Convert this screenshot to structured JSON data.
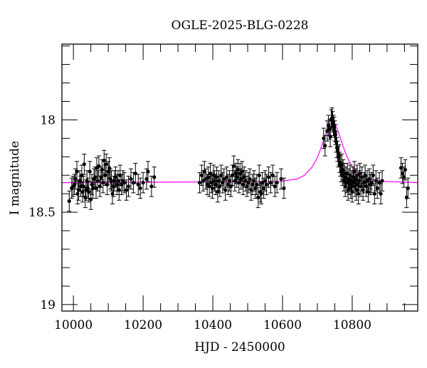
{
  "chart_data": {
    "type": "scatter",
    "title": "OGLE-2025-BLG-0228",
    "xlabel": "HJD - 2450000",
    "ylabel": "I magnitude",
    "xlim": [
      9967,
      10988
    ],
    "ylim": [
      19.035,
      17.59
    ],
    "y_inverted": true,
    "grid": false,
    "x_ticks": [
      10000,
      10200,
      10400,
      10600,
      10800
    ],
    "x_tick_labels": [
      "10000",
      "10200",
      "10400",
      "10600",
      "10800"
    ],
    "x_minor_step": 50,
    "y_ticks": [
      18,
      18.5,
      19
    ],
    "y_tick_labels": [
      "18",
      "18.5",
      "19"
    ],
    "y_minor_step": 0.1,
    "colors": {
      "points": "#000000",
      "model": "#ff00ff"
    },
    "series": [
      {
        "kind": "points-with-errorbars",
        "yerr": 0.055,
        "points": [
          [
            9988,
            18.44
          ],
          [
            9995,
            18.37
          ],
          [
            9999,
            18.36
          ],
          [
            10003,
            18.35
          ],
          [
            10006,
            18.32
          ],
          [
            10010,
            18.28
          ],
          [
            10012,
            18.4
          ],
          [
            10015,
            18.38
          ],
          [
            10018,
            18.33
          ],
          [
            10021,
            18.36
          ],
          [
            10024,
            18.3
          ],
          [
            10026,
            18.39
          ],
          [
            10029,
            18.36
          ],
          [
            10031,
            18.24
          ],
          [
            10034,
            18.42
          ],
          [
            10036,
            18.38
          ],
          [
            10039,
            18.33
          ],
          [
            10041,
            18.37
          ],
          [
            10044,
            18.39
          ],
          [
            10047,
            18.28
          ],
          [
            10050,
            18.43
          ],
          [
            10053,
            18.35
          ],
          [
            10056,
            18.37
          ],
          [
            10059,
            18.32
          ],
          [
            10062,
            18.31
          ],
          [
            10065,
            18.37
          ],
          [
            10067,
            18.26
          ],
          [
            10070,
            18.33
          ],
          [
            10073,
            18.25
          ],
          [
            10076,
            18.36
          ],
          [
            10079,
            18.31
          ],
          [
            10082,
            18.27
          ],
          [
            10085,
            18.34
          ],
          [
            10088,
            18.22
          ],
          [
            10091,
            18.3
          ],
          [
            10094,
            18.24
          ],
          [
            10097,
            18.35
          ],
          [
            10100,
            18.28
          ],
          [
            10103,
            18.26
          ],
          [
            10106,
            18.32
          ],
          [
            10109,
            18.33
          ],
          [
            10112,
            18.4
          ],
          [
            10115,
            18.36
          ],
          [
            10118,
            18.33
          ],
          [
            10121,
            18.31
          ],
          [
            10125,
            18.35
          ],
          [
            10128,
            18.33
          ],
          [
            10131,
            18.38
          ],
          [
            10134,
            18.3
          ],
          [
            10138,
            18.35
          ],
          [
            10142,
            18.33
          ],
          [
            10146,
            18.34
          ],
          [
            10152,
            18.38
          ],
          [
            10158,
            18.36
          ],
          [
            10165,
            18.32
          ],
          [
            10172,
            18.34
          ],
          [
            10178,
            18.29
          ],
          [
            10186,
            18.35
          ],
          [
            10192,
            18.37
          ],
          [
            10200,
            18.34
          ],
          [
            10210,
            18.32
          ],
          [
            10214,
            18.28
          ],
          [
            10224,
            18.36
          ],
          [
            10232,
            18.31
          ],
          [
            10362,
            18.34
          ],
          [
            10368,
            18.3
          ],
          [
            10372,
            18.33
          ],
          [
            10376,
            18.28
          ],
          [
            10380,
            18.32
          ],
          [
            10384,
            18.35
          ],
          [
            10387,
            18.31
          ],
          [
            10390,
            18.36
          ],
          [
            10393,
            18.29
          ],
          [
            10396,
            18.34
          ],
          [
            10399,
            18.37
          ],
          [
            10402,
            18.3
          ],
          [
            10405,
            18.33
          ],
          [
            10408,
            18.35
          ],
          [
            10411,
            18.31
          ],
          [
            10414,
            18.39
          ],
          [
            10417,
            18.33
          ],
          [
            10420,
            18.36
          ],
          [
            10424,
            18.3
          ],
          [
            10428,
            18.34
          ],
          [
            10432,
            18.32
          ],
          [
            10436,
            18.38
          ],
          [
            10440,
            18.31
          ],
          [
            10444,
            18.35
          ],
          [
            10448,
            18.33
          ],
          [
            10452,
            18.36
          ],
          [
            10456,
            18.3
          ],
          [
            10460,
            18.25
          ],
          [
            10463,
            18.33
          ],
          [
            10466,
            18.29
          ],
          [
            10469,
            18.31
          ],
          [
            10472,
            18.27
          ],
          [
            10475,
            18.34
          ],
          [
            10478,
            18.29
          ],
          [
            10481,
            18.32
          ],
          [
            10484,
            18.28
          ],
          [
            10487,
            18.35
          ],
          [
            10490,
            18.31
          ],
          [
            10494,
            18.33
          ],
          [
            10498,
            18.36
          ],
          [
            10502,
            18.34
          ],
          [
            10506,
            18.32
          ],
          [
            10510,
            18.38
          ],
          [
            10514,
            18.35
          ],
          [
            10518,
            18.33
          ],
          [
            10522,
            18.37
          ],
          [
            10526,
            18.35
          ],
          [
            10530,
            18.42
          ],
          [
            10533,
            18.3
          ],
          [
            10536,
            18.39
          ],
          [
            10539,
            18.4
          ],
          [
            10542,
            18.34
          ],
          [
            10546,
            18.37
          ],
          [
            10550,
            18.33
          ],
          [
            10554,
            18.35
          ],
          [
            10560,
            18.31
          ],
          [
            10566,
            18.34
          ],
          [
            10572,
            18.3
          ],
          [
            10578,
            18.36
          ],
          [
            10584,
            18.34
          ],
          [
            10596,
            18.32
          ],
          [
            10604,
            18.37
          ],
          [
            10718,
            18.1
          ],
          [
            10722,
            18.14
          ],
          [
            10728,
            18.06
          ],
          [
            10732,
            18.03
          ],
          [
            10735,
            18.05
          ],
          [
            10737,
            18.09
          ],
          [
            10740,
            18.0
          ],
          [
            10742,
            17.99
          ],
          [
            10744,
            18.01
          ],
          [
            10746,
            18.03
          ],
          [
            10748,
            18.04
          ],
          [
            10750,
            18.06
          ],
          [
            10752,
            18.08
          ],
          [
            10754,
            18.12
          ],
          [
            10756,
            18.15
          ],
          [
            10758,
            18.17
          ],
          [
            10760,
            18.2
          ],
          [
            10762,
            18.19
          ],
          [
            10764,
            18.23
          ],
          [
            10766,
            18.25
          ],
          [
            10768,
            18.28
          ],
          [
            10770,
            18.24
          ],
          [
            10772,
            18.3
          ],
          [
            10774,
            18.27
          ],
          [
            10776,
            18.33
          ],
          [
            10778,
            18.29
          ],
          [
            10780,
            18.36
          ],
          [
            10782,
            18.31
          ],
          [
            10784,
            18.34
          ],
          [
            10786,
            18.29
          ],
          [
            10788,
            18.38
          ],
          [
            10790,
            18.32
          ],
          [
            10792,
            18.35
          ],
          [
            10794,
            18.3
          ],
          [
            10796,
            18.37
          ],
          [
            10798,
            18.33
          ],
          [
            10800,
            18.39
          ],
          [
            10802,
            18.31
          ],
          [
            10804,
            18.34
          ],
          [
            10806,
            18.28
          ],
          [
            10808,
            18.36
          ],
          [
            10810,
            18.32
          ],
          [
            10812,
            18.38
          ],
          [
            10814,
            18.3
          ],
          [
            10816,
            18.35
          ],
          [
            10818,
            18.4
          ],
          [
            10820,
            18.33
          ],
          [
            10822,
            18.29
          ],
          [
            10825,
            18.36
          ],
          [
            10828,
            18.31
          ],
          [
            10831,
            18.38
          ],
          [
            10834,
            18.34
          ],
          [
            10837,
            18.3
          ],
          [
            10840,
            18.36
          ],
          [
            10843,
            18.33
          ],
          [
            10846,
            18.39
          ],
          [
            10849,
            18.32
          ],
          [
            10852,
            18.35
          ],
          [
            10856,
            18.34
          ],
          [
            10860,
            18.3
          ],
          [
            10864,
            18.4
          ],
          [
            10868,
            18.33
          ],
          [
            10872,
            18.37
          ],
          [
            10878,
            18.34
          ],
          [
            10882,
            18.4
          ],
          [
            10886,
            18.33
          ],
          [
            10940,
            18.26
          ],
          [
            10944,
            18.29
          ],
          [
            10948,
            18.31
          ],
          [
            10952,
            18.27
          ],
          [
            10956,
            18.42
          ],
          [
            10960,
            18.37
          ]
        ]
      },
      {
        "kind": "model-line",
        "points": [
          [
            9967,
            18.34
          ],
          [
            10493,
            18.335
          ],
          [
            10593,
            18.333
          ],
          [
            10643,
            18.32
          ],
          [
            10663,
            18.3
          ],
          [
            10683,
            18.26
          ],
          [
            10693,
            18.23
          ],
          [
            10703,
            18.19
          ],
          [
            10713,
            18.14
          ],
          [
            10723,
            18.08
          ],
          [
            10733,
            18.03
          ],
          [
            10743,
            18.01
          ],
          [
            10753,
            18.03
          ],
          [
            10763,
            18.08
          ],
          [
            10773,
            18.14
          ],
          [
            10783,
            18.19
          ],
          [
            10793,
            18.23
          ],
          [
            10803,
            18.26
          ],
          [
            10823,
            18.3
          ],
          [
            10843,
            18.32
          ],
          [
            10893,
            18.333
          ],
          [
            10988,
            18.34
          ]
        ]
      }
    ]
  }
}
